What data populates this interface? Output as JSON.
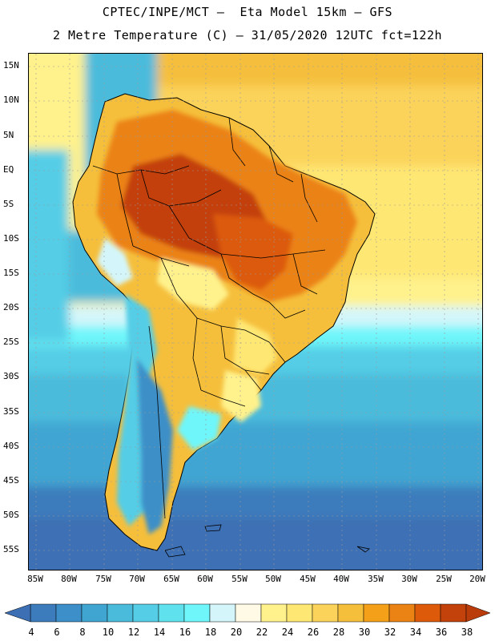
{
  "header": {
    "line1": "CPTEC/INPE/MCT –  Eta Model 15km – GFS",
    "line2": "2 Metre Temperature (C) – 31/05/2020 12UTC fct=122h"
  },
  "axes": {
    "lat_labels": [
      "15N",
      "10N",
      "5N",
      "EQ",
      "5S",
      "10S",
      "15S",
      "20S",
      "25S",
      "30S",
      "35S",
      "40S",
      "45S",
      "50S",
      "55S"
    ],
    "lon_labels": [
      "85W",
      "80W",
      "75W",
      "70W",
      "65W",
      "60W",
      "55W",
      "50W",
      "45W",
      "40W",
      "35W",
      "30W",
      "25W",
      "20W"
    ]
  },
  "colorbar": {
    "labels": [
      "4",
      "6",
      "8",
      "10",
      "12",
      "14",
      "16",
      "18",
      "20",
      "22",
      "24",
      "26",
      "28",
      "30",
      "32",
      "34",
      "36",
      "38"
    ],
    "colors": [
      "#3c6fb4",
      "#3c7cbc",
      "#3c8fc8",
      "#41a5d2",
      "#4bbbdc",
      "#55cde6",
      "#5fe2ee",
      "#6ef6fa",
      "#d4f6fa",
      "#fffae6",
      "#fff28c",
      "#ffe773",
      "#fbd35a",
      "#f5bf3c",
      "#f5a019",
      "#eb8214",
      "#dc5a0a",
      "#c3410a",
      "#b93c0a"
    ]
  }
}
